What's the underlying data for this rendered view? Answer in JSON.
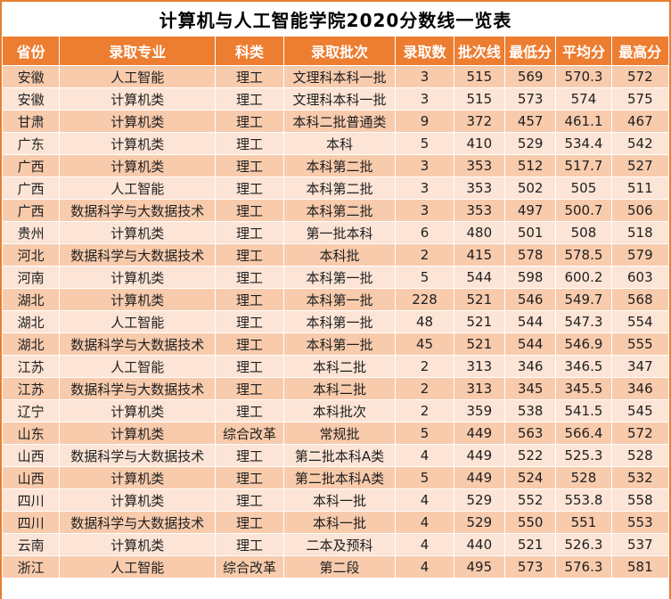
{
  "title": "计算机与人工智能学院2020分数线一览表",
  "colors": {
    "header_bg": "#ED7D31",
    "row_odd_bg": "#F8CBAD",
    "row_even_bg": "#FCE4D6",
    "outer_border": "#E87E31",
    "gridline": "#FFFFFF",
    "header_text": "#FFFFFF",
    "body_text": "#1F1F1F",
    "title_text": "#000000"
  },
  "chart_data": {
    "type": "table",
    "title": "计算机与人工智能学院2020分数线一览表",
    "columns": [
      "省份",
      "录取专业",
      "科类",
      "录取批次",
      "录取数",
      "批次线",
      "最低分",
      "平均分",
      "最高分"
    ],
    "rows": [
      [
        "安徽",
        "人工智能",
        "理工",
        "文理科本科一批",
        "3",
        "515",
        "569",
        "570.3",
        "572"
      ],
      [
        "安徽",
        "计算机类",
        "理工",
        "文理科本科一批",
        "3",
        "515",
        "573",
        "574",
        "575"
      ],
      [
        "甘肃",
        "计算机类",
        "理工",
        "本科二批普通类",
        "9",
        "372",
        "457",
        "461.1",
        "467"
      ],
      [
        "广东",
        "计算机类",
        "理工",
        "本科",
        "5",
        "410",
        "529",
        "534.4",
        "542"
      ],
      [
        "广西",
        "计算机类",
        "理工",
        "本科第二批",
        "3",
        "353",
        "512",
        "517.7",
        "527"
      ],
      [
        "广西",
        "人工智能",
        "理工",
        "本科第二批",
        "3",
        "353",
        "502",
        "505",
        "511"
      ],
      [
        "广西",
        "数据科学与大数据技术",
        "理工",
        "本科第二批",
        "3",
        "353",
        "497",
        "500.7",
        "506"
      ],
      [
        "贵州",
        "计算机类",
        "理工",
        "第一批本科",
        "6",
        "480",
        "501",
        "508",
        "518"
      ],
      [
        "河北",
        "数据科学与大数据技术",
        "理工",
        "本科批",
        "2",
        "415",
        "578",
        "578.5",
        "579"
      ],
      [
        "河南",
        "计算机类",
        "理工",
        "本科第一批",
        "5",
        "544",
        "598",
        "600.2",
        "603"
      ],
      [
        "湖北",
        "计算机类",
        "理工",
        "本科第一批",
        "228",
        "521",
        "546",
        "549.7",
        "568"
      ],
      [
        "湖北",
        "人工智能",
        "理工",
        "本科第一批",
        "48",
        "521",
        "544",
        "547.3",
        "554"
      ],
      [
        "湖北",
        "数据科学与大数据技术",
        "理工",
        "本科第一批",
        "45",
        "521",
        "544",
        "546.9",
        "555"
      ],
      [
        "江苏",
        "人工智能",
        "理工",
        "本科二批",
        "2",
        "313",
        "346",
        "346.5",
        "347"
      ],
      [
        "江苏",
        "数据科学与大数据技术",
        "理工",
        "本科二批",
        "2",
        "313",
        "345",
        "345.5",
        "346"
      ],
      [
        "辽宁",
        "计算机类",
        "理工",
        "本科批次",
        "2",
        "359",
        "538",
        "541.5",
        "545"
      ],
      [
        "山东",
        "计算机类",
        "综合改革",
        "常规批",
        "5",
        "449",
        "563",
        "566.4",
        "572"
      ],
      [
        "山西",
        "数据科学与大数据技术",
        "理工",
        "第二批本科A类",
        "4",
        "449",
        "522",
        "525.3",
        "528"
      ],
      [
        "山西",
        "计算机类",
        "理工",
        "第二批本科A类",
        "5",
        "449",
        "524",
        "528",
        "532"
      ],
      [
        "四川",
        "计算机类",
        "理工",
        "本科一批",
        "4",
        "529",
        "552",
        "553.8",
        "558"
      ],
      [
        "四川",
        "数据科学与大数据技术",
        "理工",
        "本科一批",
        "4",
        "529",
        "550",
        "551",
        "553"
      ],
      [
        "云南",
        "计算机类",
        "理工",
        "二本及预科",
        "4",
        "440",
        "521",
        "526.3",
        "537"
      ],
      [
        "浙江",
        "人工智能",
        "综合改革",
        "第二段",
        "4",
        "495",
        "573",
        "576.3",
        "581"
      ]
    ]
  }
}
